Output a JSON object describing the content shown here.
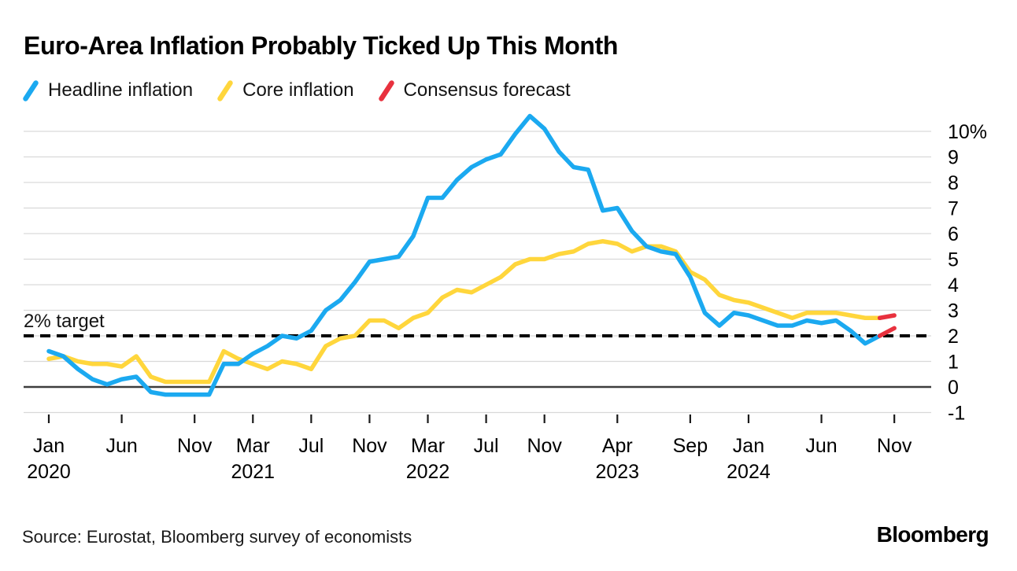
{
  "header": {
    "title": "Euro-Area Inflation Probably Ticked Up This Month"
  },
  "legend": [
    {
      "id": "headline",
      "label": "Headline inflation",
      "color": "#1ba9f0"
    },
    {
      "id": "core",
      "label": "Core inflation",
      "color": "#ffd63c"
    },
    {
      "id": "consensus",
      "label": "Consensus forecast",
      "color": "#e8313e"
    }
  ],
  "annotations": {
    "target_label": "2% target"
  },
  "footer": {
    "source": "Source: Eurostat, Bloomberg survey of economists",
    "logo": "Bloomberg"
  },
  "colors": {
    "gridline": "#d9d9d9",
    "zero_line": "#3d3d3d",
    "target_line": "#000000",
    "tick": "#1a1a1a",
    "axis_text": "#000000"
  },
  "chart_data": {
    "type": "line",
    "x_unit": "month",
    "x_start": "Jan 2020",
    "x_end": "Nov 2024",
    "ylim": [
      -1,
      10.6
    ],
    "grid": true,
    "legend_position": "top",
    "y_axis_side": "right",
    "target_line": {
      "value": 2,
      "label": "2% target",
      "style": "dashed"
    },
    "yticks": [
      {
        "v": 10,
        "label": "10%"
      },
      {
        "v": 9,
        "label": "9"
      },
      {
        "v": 8,
        "label": "8"
      },
      {
        "v": 7,
        "label": "7"
      },
      {
        "v": 6,
        "label": "6"
      },
      {
        "v": 5,
        "label": "5"
      },
      {
        "v": 4,
        "label": "4"
      },
      {
        "v": 3,
        "label": "3"
      },
      {
        "v": 2,
        "label": "2"
      },
      {
        "v": 1,
        "label": "1"
      },
      {
        "v": 0,
        "label": "0"
      },
      {
        "v": -1,
        "label": "-1"
      }
    ],
    "xticks": [
      {
        "i": 0,
        "month": "Jan",
        "year": "2020"
      },
      {
        "i": 5,
        "month": "Jun",
        "year": ""
      },
      {
        "i": 10,
        "month": "Nov",
        "year": ""
      },
      {
        "i": 14,
        "month": "Mar",
        "year": "2021"
      },
      {
        "i": 18,
        "month": "Jul",
        "year": ""
      },
      {
        "i": 22,
        "month": "Nov",
        "year": ""
      },
      {
        "i": 26,
        "month": "Mar",
        "year": "2022"
      },
      {
        "i": 30,
        "month": "Jul",
        "year": ""
      },
      {
        "i": 34,
        "month": "Nov",
        "year": ""
      },
      {
        "i": 39,
        "month": "Apr",
        "year": "2023"
      },
      {
        "i": 44,
        "month": "Sep",
        "year": ""
      },
      {
        "i": 48,
        "month": "Jan",
        "year": "2024"
      },
      {
        "i": 53,
        "month": "Jun",
        "year": ""
      },
      {
        "i": 58,
        "month": "Nov",
        "year": ""
      }
    ],
    "series": [
      {
        "name": "Headline inflation",
        "color": "#1ba9f0",
        "values": [
          1.4,
          1.2,
          0.7,
          0.3,
          0.1,
          0.3,
          0.4,
          -0.2,
          -0.3,
          -0.3,
          -0.3,
          -0.3,
          0.9,
          0.9,
          1.3,
          1.6,
          2.0,
          1.9,
          2.2,
          3.0,
          3.4,
          4.1,
          4.9,
          5.0,
          5.1,
          5.9,
          7.4,
          7.4,
          8.1,
          8.6,
          8.9,
          9.1,
          9.9,
          10.6,
          10.1,
          9.2,
          8.6,
          8.5,
          6.9,
          7.0,
          6.1,
          5.5,
          5.3,
          5.2,
          4.3,
          2.9,
          2.4,
          2.9,
          2.8,
          2.6,
          2.4,
          2.4,
          2.6,
          2.5,
          2.6,
          2.2,
          1.7,
          2.0
        ],
        "forecast": 2.3
      },
      {
        "name": "Core inflation",
        "color": "#ffd63c",
        "values": [
          1.1,
          1.2,
          1.0,
          0.9,
          0.9,
          0.8,
          1.2,
          0.4,
          0.2,
          0.2,
          0.2,
          0.2,
          1.4,
          1.1,
          0.9,
          0.7,
          1.0,
          0.9,
          0.7,
          1.6,
          1.9,
          2.0,
          2.6,
          2.6,
          2.3,
          2.7,
          2.9,
          3.5,
          3.8,
          3.7,
          4.0,
          4.3,
          4.8,
          5.0,
          5.0,
          5.2,
          5.3,
          5.6,
          5.7,
          5.6,
          5.3,
          5.5,
          5.5,
          5.3,
          4.5,
          4.2,
          3.6,
          3.4,
          3.3,
          3.1,
          2.9,
          2.7,
          2.9,
          2.9,
          2.9,
          2.8,
          2.7,
          2.7
        ],
        "forecast": 2.8
      }
    ],
    "forecast_color": "#e8313e"
  }
}
